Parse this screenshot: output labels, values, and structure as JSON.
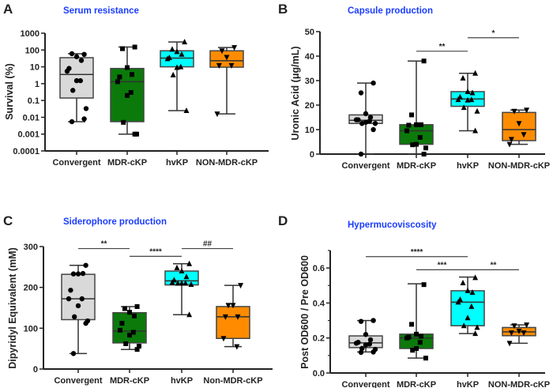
{
  "chart_data": [
    {
      "type": "box",
      "panel": "A",
      "title": "Serum resistance",
      "ylabel": "Survival (%)",
      "yscale": "log",
      "ylim": [
        0.0001,
        1000
      ],
      "yticks": [
        "1000",
        "100",
        "10",
        "1",
        "0.1",
        "0.01",
        "0.001",
        "0.0001"
      ],
      "categories": [
        "Convergent",
        "MDR-cKP",
        "hvKP",
        "NON-MDR-cKP"
      ],
      "colors": [
        "#d9d9d9",
        "#0b7a0b",
        "#00ffff",
        "#ff8c00"
      ],
      "markers": [
        "circle",
        "square",
        "triangle-up",
        "triangle-down"
      ],
      "boxes": [
        {
          "min": 0.0055,
          "q1": 0.14,
          "median": 3.5,
          "q3": 35,
          "max": 60,
          "points": [
            55,
            60,
            40,
            24,
            8,
            5.5,
            1.5,
            1.5,
            0.4,
            0.033,
            0.008,
            0.0055
          ]
        },
        {
          "min": 0.001,
          "q1": 0.0055,
          "median": 1.3,
          "q3": 8,
          "max": 150,
          "points": [
            150,
            120,
            9,
            3.5,
            2.5,
            1.3,
            0.3,
            0.2,
            0.005,
            0.001,
            0.001
          ]
        },
        {
          "min": 0.025,
          "q1": 10,
          "median": 33,
          "q3": 90,
          "max": 300,
          "points": [
            300,
            110,
            80,
            55,
            35,
            30,
            10,
            9,
            3.3,
            0.025
          ]
        },
        {
          "min": 0.016,
          "q1": 9.5,
          "median": 23,
          "q3": 90,
          "max": 140,
          "points": [
            140,
            90,
            37,
            12,
            12,
            0.016
          ]
        }
      ],
      "significance": []
    },
    {
      "type": "box",
      "panel": "B",
      "title": "Capsule production",
      "ylabel": "Uronic Acid (μg/mL)",
      "yscale": "linear",
      "ylim": [
        0,
        50
      ],
      "yticks": [
        "0",
        "10",
        "20",
        "30",
        "40",
        "50"
      ],
      "tickvals": [
        0,
        10,
        20,
        30,
        40,
        50
      ],
      "categories": [
        "Convergent",
        "MDR-cKP",
        "hvKP",
        "NON-MDR-cKP"
      ],
      "colors": [
        "#d9d9d9",
        "#0b7a0b",
        "#00ffff",
        "#ff8c00"
      ],
      "markers": [
        "circle",
        "square",
        "triangle-up",
        "triangle-down"
      ],
      "boxes": [
        {
          "min": 0,
          "q1": 12.5,
          "median": 13.8,
          "q3": 16,
          "max": 29,
          "points": [
            29,
            25,
            16.5,
            15,
            14,
            14,
            13.5,
            13,
            12.5,
            12.5,
            10,
            0
          ]
        },
        {
          "min": 0,
          "q1": 4,
          "median": 9.5,
          "q3": 12,
          "max": 38,
          "points": [
            38,
            16,
            12,
            12,
            11.8,
            9.5,
            6.8,
            4,
            3.8,
            2.5,
            0
          ]
        },
        {
          "min": 9.5,
          "q1": 19.5,
          "median": 22.5,
          "q3": 25.5,
          "max": 33,
          "points": [
            33,
            31,
            25.5,
            25,
            23.3,
            22.2,
            22.2,
            22,
            19,
            17.5,
            9.5
          ]
        },
        {
          "min": 4,
          "q1": 5.5,
          "median": 10,
          "q3": 17,
          "max": 18,
          "points": [
            18,
            17.5,
            12.5,
            8,
            6,
            4
          ]
        }
      ],
      "significance": [
        {
          "from": 1,
          "to": 2,
          "y": 42,
          "label": "**"
        },
        {
          "from": 2,
          "to": 3,
          "y": 47.5,
          "label": "*"
        }
      ]
    },
    {
      "type": "box",
      "panel": "C",
      "title": "Siderophore production",
      "ylabel": "Dipyridyl Equivalent (mM)",
      "yscale": "linear",
      "ylim": [
        0,
        300
      ],
      "yticks": [
        "0",
        "100",
        "200",
        "300"
      ],
      "tickvals": [
        0,
        100,
        200,
        300
      ],
      "categories": [
        "Convergent",
        "MDR-cKP",
        "hvKP",
        "Non-MDR-cKP"
      ],
      "colors": [
        "#d9d9d9",
        "#0b7a0b",
        "#00ffff",
        "#ff8c00"
      ],
      "markers": [
        "circle",
        "square",
        "triangle-up",
        "triangle-down"
      ],
      "boxes": [
        {
          "min": 38,
          "q1": 121,
          "median": 172,
          "q3": 232,
          "max": 254,
          "points": [
            254,
            233,
            233,
            234,
            193,
            172,
            172,
            155,
            128,
            118,
            112,
            38
          ]
        },
        {
          "min": 48,
          "q1": 64,
          "median": 93,
          "q3": 138,
          "max": 153,
          "points": [
            153,
            148,
            139,
            130,
            112,
            95,
            90,
            83,
            62,
            56,
            48
          ]
        },
        {
          "min": 133,
          "q1": 206,
          "median": 216,
          "q3": 240,
          "max": 258,
          "points": [
            258,
            248,
            240,
            226,
            218,
            212,
            210,
            210,
            210,
            207,
            133
          ]
        },
        {
          "min": 55,
          "q1": 75,
          "median": 128,
          "q3": 153,
          "max": 205,
          "points": [
            205,
            156,
            156,
            128,
            128,
            75,
            55
          ]
        }
      ],
      "significance": [
        {
          "from": 0,
          "to": 1,
          "y": 295,
          "label": "**"
        },
        {
          "from": 1,
          "to": 2,
          "y": 276,
          "label": "****"
        },
        {
          "from": 2,
          "to": 3,
          "y": 295,
          "label": "##"
        }
      ]
    },
    {
      "type": "box",
      "panel": "D",
      "title": "Hypermucoviscosity",
      "ylabel": "Post OD600 / Pre OD600",
      "yscale": "linear",
      "ylim": [
        0,
        0.7
      ],
      "yticks": [
        "0.0",
        "0.2",
        "0.4",
        "0.6"
      ],
      "tickvals": [
        0,
        0.2,
        0.4,
        0.6
      ],
      "categories": [
        "Convergent",
        "MDR-cKP",
        "hvKP",
        "NON-MDR-cKP"
      ],
      "colors": [
        "#d9d9d9",
        "#0b7a0b",
        "#00ffff",
        "#ff8c00"
      ],
      "markers": [
        "circle",
        "square",
        "triangle-up",
        "triangle-down"
      ],
      "boxes": [
        {
          "min": 0.12,
          "q1": 0.145,
          "median": 0.172,
          "q3": 0.212,
          "max": 0.3,
          "points": [
            0.3,
            0.295,
            0.22,
            0.19,
            0.175,
            0.17,
            0.165,
            0.16,
            0.14,
            0.135,
            0.12,
            0.118
          ]
        },
        {
          "min": 0.085,
          "q1": 0.14,
          "median": 0.2,
          "q3": 0.222,
          "max": 0.51,
          "points": [
            0.505,
            0.278,
            0.222,
            0.21,
            0.205,
            0.2,
            0.175,
            0.14,
            0.13,
            0.085
          ]
        },
        {
          "min": 0.225,
          "q1": 0.27,
          "median": 0.405,
          "q3": 0.47,
          "max": 0.548,
          "points": [
            0.545,
            0.515,
            0.47,
            0.46,
            0.42,
            0.405,
            0.38,
            0.315,
            0.27,
            0.26,
            0.225
          ]
        },
        {
          "min": 0.17,
          "q1": 0.213,
          "median": 0.235,
          "q3": 0.26,
          "max": 0.275,
          "points": [
            0.275,
            0.27,
            0.24,
            0.23,
            0.23,
            0.17
          ]
        }
      ],
      "significance": [
        {
          "from": 0,
          "to": 2,
          "y": 0.665,
          "label": "****"
        },
        {
          "from": 1,
          "to": 2,
          "y": 0.59,
          "label": "***"
        },
        {
          "from": 2,
          "to": 3,
          "y": 0.59,
          "label": "**"
        }
      ]
    }
  ]
}
